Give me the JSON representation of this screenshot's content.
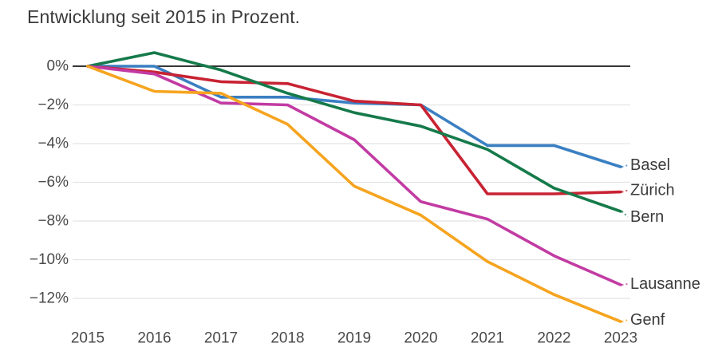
{
  "title": "Entwicklung seit 2015 in Prozent.",
  "chart_data": {
    "type": "line",
    "x": [
      2015,
      2016,
      2017,
      2018,
      2019,
      2020,
      2021,
      2022,
      2023
    ],
    "xtick_labels": [
      "2015",
      "2016",
      "2017",
      "2018",
      "2019",
      "2020",
      "2021",
      "2022",
      "2023"
    ],
    "ytick_values": [
      0,
      -2,
      -4,
      -6,
      -8,
      -10,
      -12
    ],
    "ytick_labels": [
      "0%",
      "−2%",
      "−4%",
      "−6%",
      "−8%",
      "−10%",
      "−12%"
    ],
    "ylim": [
      -13.6,
      1.0
    ],
    "grid": "horizontal",
    "zero_line": true,
    "legend_position": "line-end-labels-right",
    "series": [
      {
        "name": "Basel",
        "color": "#3a7fc2",
        "values": [
          0,
          0.0,
          -1.6,
          -1.6,
          -1.9,
          -2.0,
          -4.1,
          -4.1,
          -5.2
        ]
      },
      {
        "name": "Zürich",
        "color": "#c82333",
        "values": [
          0,
          -0.3,
          -0.8,
          -0.9,
          -1.8,
          -2.0,
          -6.6,
          -6.6,
          -6.5
        ]
      },
      {
        "name": "Bern",
        "color": "#157a4a",
        "values": [
          0,
          0.7,
          -0.2,
          -1.4,
          -2.4,
          -3.1,
          -4.3,
          -6.3,
          -7.5
        ]
      },
      {
        "name": "Lausanne",
        "color": "#c23ba3",
        "values": [
          0,
          -0.4,
          -1.9,
          -2.0,
          -3.8,
          -7.0,
          -7.9,
          -9.8,
          -11.3
        ]
      },
      {
        "name": "Genf",
        "color": "#f6a41f",
        "values": [
          0,
          -1.3,
          -1.4,
          -3.0,
          -6.2,
          -7.7,
          -10.1,
          -11.8,
          -13.2
        ]
      }
    ],
    "colors": {
      "grid": "#e4e4e4",
      "zero_line": "#1a1a1a",
      "tick_text": "#4a4a4a",
      "title_text": "#3b3b3b"
    }
  }
}
